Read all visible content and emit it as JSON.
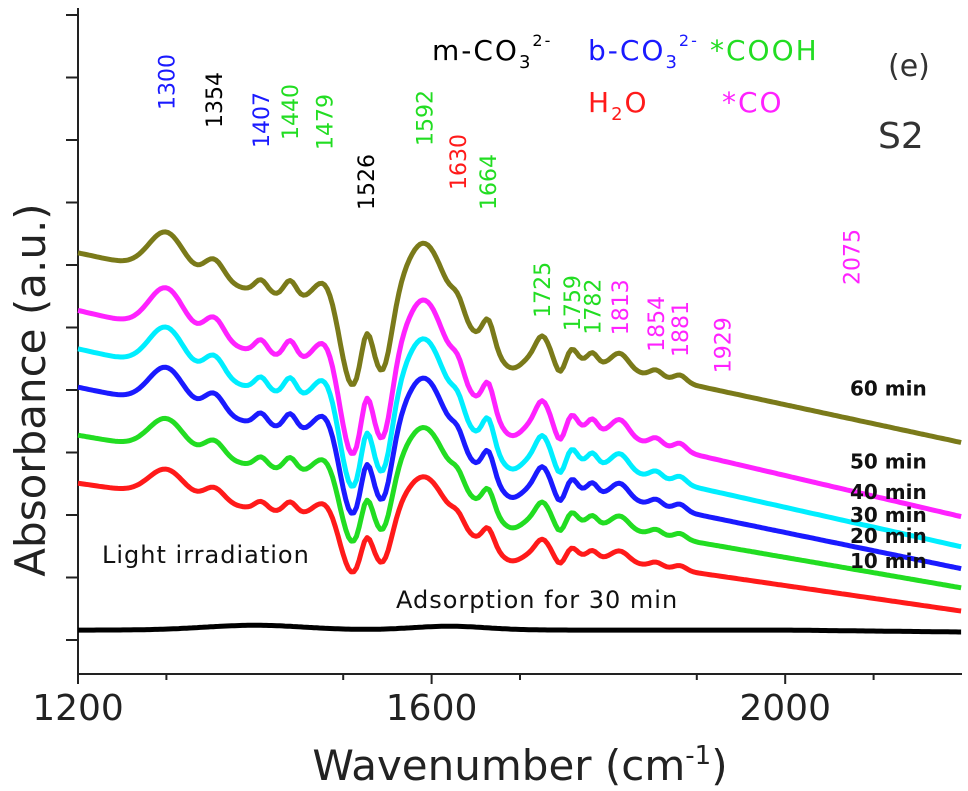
{
  "chart_data": {
    "type": "line",
    "panel_label": "(e)",
    "sample_label": "S2",
    "xlabel": "Wavenumber (cm",
    "xlabel_sup": "-1",
    "xlabel_end": ")",
    "ylabel": "Absorbance (a.u.)",
    "xlim": [
      1200,
      2200
    ],
    "x_ticks": [
      1200,
      1600,
      2000
    ],
    "x_tick_labels": [
      "1200",
      "1600",
      "2000"
    ],
    "y_ticks_unlabeled": true,
    "legend": [
      {
        "text": "m-CO",
        "sub": "3",
        "sup": "2-",
        "color": "#000000"
      },
      {
        "text": "b-CO",
        "sub": "3",
        "sup": "2-",
        "color": "#1a1aff"
      },
      {
        "text": "*COOH",
        "sub": "",
        "sup": "",
        "color": "#22dd22"
      },
      {
        "text": "H",
        "sub": "2",
        "sup": "",
        "tail": "O",
        "color": "#ff1a1a"
      },
      {
        "text": "*CO",
        "sub": "",
        "sup": "",
        "color": "#ff22ff"
      }
    ],
    "peaks": [
      {
        "label": "1300",
        "x": 1300,
        "color": "#1a1aff"
      },
      {
        "label": "1354",
        "x": 1354,
        "color": "#000000"
      },
      {
        "label": "1407",
        "x": 1407,
        "color": "#1a1aff"
      },
      {
        "label": "1440",
        "x": 1440,
        "color": "#22dd22"
      },
      {
        "label": "1479",
        "x": 1479,
        "color": "#22dd22"
      },
      {
        "label": "1526",
        "x": 1526,
        "color": "#000000"
      },
      {
        "label": "1592",
        "x": 1592,
        "color": "#22dd22"
      },
      {
        "label": "1630",
        "x": 1630,
        "color": "#ff1a1a"
      },
      {
        "label": "1664",
        "x": 1664,
        "color": "#22dd22"
      },
      {
        "label": "1725",
        "x": 1725,
        "color": "#22dd22"
      },
      {
        "label": "1759",
        "x": 1759,
        "color": "#22dd22"
      },
      {
        "label": "1782",
        "x": 1782,
        "color": "#22dd22"
      },
      {
        "label": "1813",
        "x": 1813,
        "color": "#ff22ff"
      },
      {
        "label": "1854",
        "x": 1854,
        "color": "#ff22ff"
      },
      {
        "label": "1881",
        "x": 1881,
        "color": "#ff22ff"
      },
      {
        "label": "1929",
        "x": 1929,
        "color": "#ff22ff"
      },
      {
        "label": "2075",
        "x": 2075,
        "color": "#ff22ff"
      }
    ],
    "series": [
      {
        "label": "Adsorption for 30 min",
        "color": "#000000",
        "offset": 0.0,
        "scale": 0.0
      },
      {
        "label": "10 min",
        "color": "#ff1a1a",
        "offset": 1.55,
        "scale": 0.62
      },
      {
        "label": "20 min",
        "color": "#22dd22",
        "offset": 2.05,
        "scale": 0.74
      },
      {
        "label": "30 min",
        "color": "#1a1aff",
        "offset": 2.55,
        "scale": 0.88
      },
      {
        "label": "40 min",
        "color": "#00eeff",
        "offset": 2.95,
        "scale": 0.96
      },
      {
        "label": "50 min",
        "color": "#ff22ff",
        "offset": 3.35,
        "scale": 1.0
      },
      {
        "label": "60 min",
        "color": "#7a7a1a",
        "offset": 3.95,
        "scale": 0.92
      }
    ],
    "annotations": [
      "Light irradiation"
    ]
  }
}
